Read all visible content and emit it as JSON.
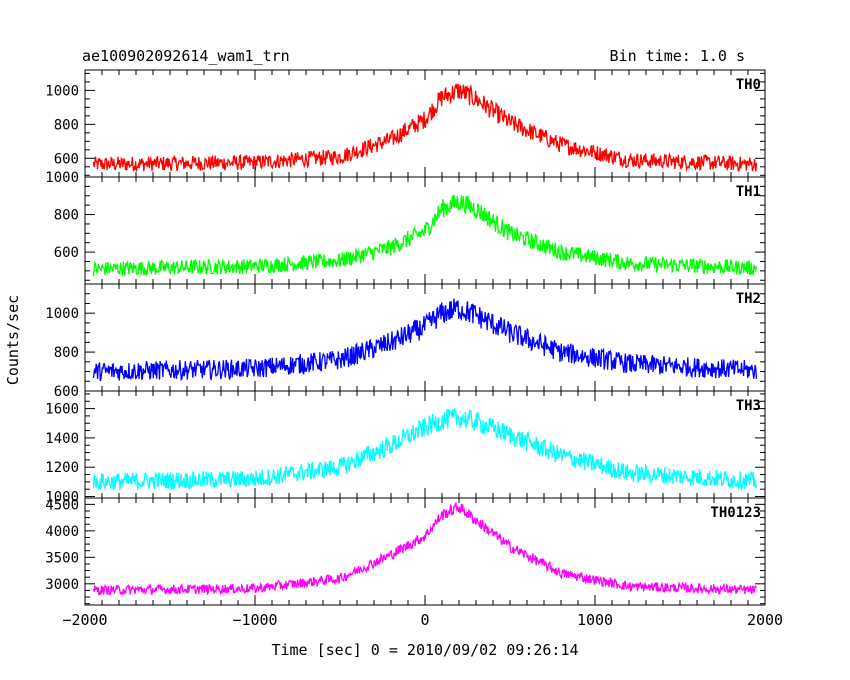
{
  "header": {
    "left": "ae100902092614_wam1_trn",
    "right": "Bin time: 1.0 s"
  },
  "chart_data": {
    "type": "line",
    "xlabel": "Time [sec] 0 = 2010/09/02 09:26:14",
    "ylabel": "Counts/sec",
    "xlim": [
      -2000,
      2000
    ],
    "xticks": [
      -2000,
      -1000,
      0,
      1000,
      2000
    ],
    "bin_time_s": 1.0,
    "panels": [
      {
        "name": "TH0",
        "color": "#ff0000",
        "ylim": [
          490,
          1120
        ],
        "yticks": [
          600,
          800,
          1000
        ],
        "profile": {
          "x": [
            -1950,
            -1000,
            -500,
            -200,
            0,
            100,
            200,
            300,
            500,
            800,
            1200,
            1950
          ],
          "y": [
            565,
            575,
            610,
            710,
            830,
            960,
            1000,
            950,
            810,
            680,
            590,
            565
          ]
        },
        "noise": 45
      },
      {
        "name": "TH1",
        "color": "#00ff00",
        "ylim": [
          430,
          1000
        ],
        "yticks": [
          600,
          800,
          1000
        ],
        "profile": {
          "x": [
            -1950,
            -1000,
            -500,
            -200,
            0,
            100,
            200,
            300,
            500,
            800,
            1200,
            1950
          ],
          "y": [
            510,
            525,
            555,
            625,
            710,
            830,
            870,
            830,
            700,
            600,
            540,
            515
          ]
        },
        "noise": 40
      },
      {
        "name": "TH2",
        "color": "#0000ff",
        "ylim": [
          600,
          1150
        ],
        "yticks": [
          600,
          800,
          1000
        ],
        "profile": {
          "x": [
            -1950,
            -1000,
            -500,
            -200,
            0,
            100,
            200,
            300,
            500,
            800,
            1200,
            1950
          ],
          "y": [
            700,
            715,
            760,
            850,
            930,
            1000,
            1025,
            990,
            900,
            800,
            740,
            705
          ]
        },
        "noise": 50
      },
      {
        "name": "TH3",
        "color": "#00ffff",
        "ylim": [
          990,
          1720
        ],
        "yticks": [
          1000,
          1200,
          1400,
          1600
        ],
        "profile": {
          "x": [
            -1950,
            -1000,
            -500,
            -200,
            0,
            100,
            200,
            300,
            500,
            800,
            1200,
            1950
          ],
          "y": [
            1100,
            1120,
            1200,
            1350,
            1470,
            1520,
            1540,
            1510,
            1420,
            1280,
            1160,
            1105
          ]
        },
        "noise": 60
      },
      {
        "name": "TH0123",
        "color": "#ff00ff",
        "ylim": [
          2600,
          4620
        ],
        "yticks": [
          3000,
          3500,
          4000,
          4500
        ],
        "profile": {
          "x": [
            -1950,
            -1000,
            -500,
            -200,
            0,
            100,
            200,
            300,
            500,
            800,
            1200,
            1950
          ],
          "y": [
            2880,
            2910,
            3100,
            3550,
            3900,
            4300,
            4450,
            4200,
            3700,
            3200,
            2950,
            2880
          ]
        },
        "noise": 90
      }
    ]
  }
}
